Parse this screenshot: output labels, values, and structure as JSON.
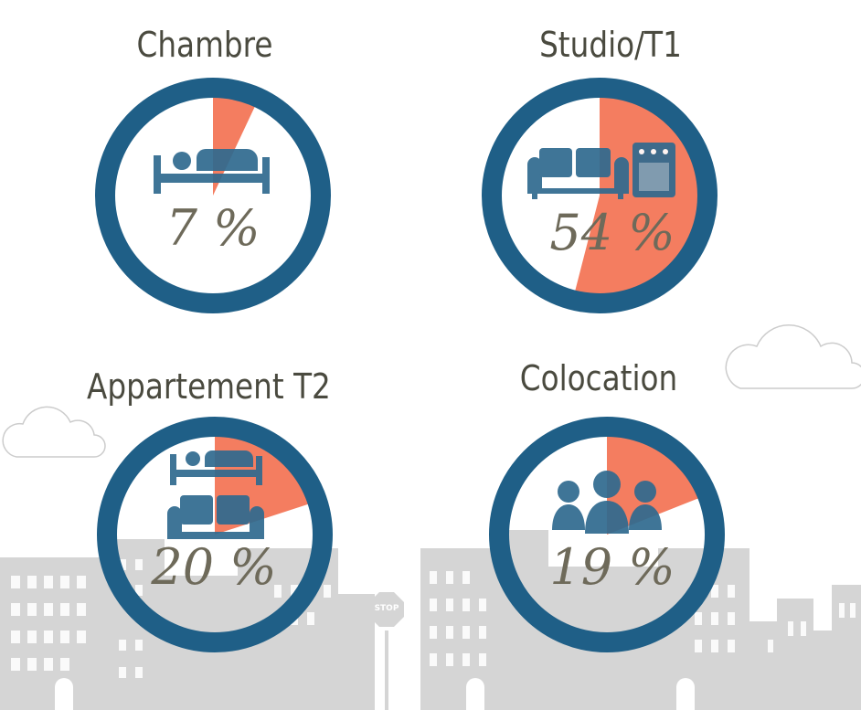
{
  "palette": {
    "ring": "#1f5f87",
    "slice": "#f47d60",
    "icon": "#2f6a8f",
    "text_title": "#4a4a3f",
    "text_value": "#6e6a5a",
    "skyline": "#d5d5d5",
    "cloud_stroke": "#cccccc"
  },
  "background": {
    "stop_sign_text": "STOP"
  },
  "chart_data": [
    {
      "type": "pie",
      "title": "Chambre",
      "value": 7,
      "value_text": "7 %",
      "unit": "%",
      "icon": "bed-icon"
    },
    {
      "type": "pie",
      "title": "Studio/T1",
      "value": 54,
      "value_text": "54 %",
      "unit": "%",
      "icon": "sofa-and-oven-icon"
    },
    {
      "type": "pie",
      "title": "Appartement T2",
      "value": 20,
      "value_text": "20 %",
      "unit": "%",
      "icon": "bed-and-sofa-icon"
    },
    {
      "type": "pie",
      "title": "Colocation",
      "value": 19,
      "value_text": "19 %",
      "unit": "%",
      "icon": "group-of-people-icon"
    }
  ]
}
